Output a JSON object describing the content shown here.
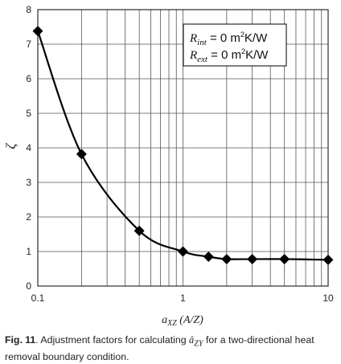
{
  "chart_data": {
    "type": "line",
    "x_scale": "log",
    "xlim": [
      0.1,
      10
    ],
    "ylim": [
      0,
      8
    ],
    "x_ticks": [
      "0.1",
      "1",
      "10"
    ],
    "y_ticks": [
      "0",
      "1",
      "2",
      "3",
      "4",
      "5",
      "6",
      "7",
      "8"
    ],
    "xlabel_parts": {
      "main": "a",
      "sub": "XZ",
      "rest": " (A/Z)"
    },
    "ylabel": "ζ",
    "grid": true,
    "legend_position": "top-right",
    "annotation": {
      "line1": {
        "symbol": "R",
        "sub": "int",
        "value": " = 0 m",
        "sup": "2",
        "unit": "K/W"
      },
      "line2": {
        "symbol": "R",
        "sub": "ext",
        "value": " = 0 m",
        "sup": "2",
        "unit": "K/W"
      }
    },
    "series": [
      {
        "marker": "diamond",
        "x": [
          0.1,
          0.2,
          0.5,
          1,
          1.5,
          2,
          3,
          5,
          10
        ],
        "y": [
          7.38,
          3.82,
          1.6,
          1.0,
          0.85,
          0.78,
          0.78,
          0.78,
          0.76
        ]
      }
    ]
  },
  "caption": {
    "label": "Fig. 11",
    "text_before": ". Adjustment factors for calculating ",
    "symbol": "â",
    "symbol_sub": "ZY",
    "text_after": " for a two-directional heat removal boundary condition."
  }
}
